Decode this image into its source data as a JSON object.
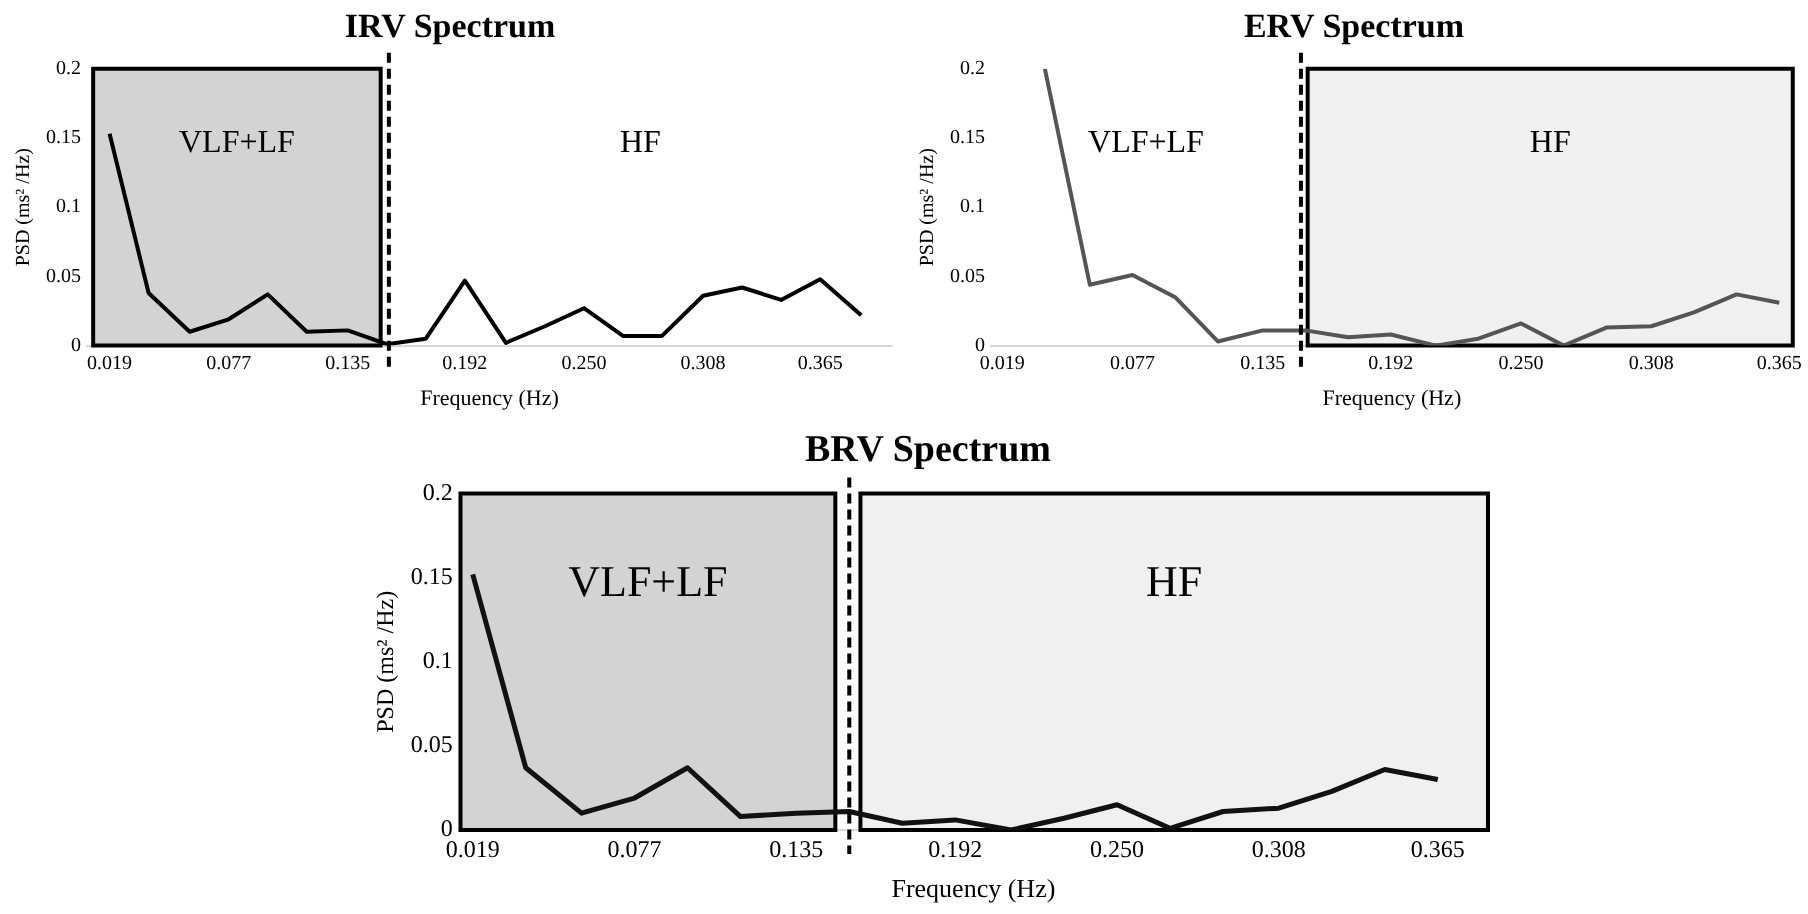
{
  "chart_data": [
    {
      "type": "line",
      "title": "IRV Spectrum",
      "xlabel": "Frequency (Hz)",
      "ylabel": "PSD (ms² /Hz)",
      "x": [
        0.019,
        0.038,
        0.058,
        0.077,
        0.096,
        0.115,
        0.135,
        0.154,
        0.173,
        0.192,
        0.212,
        0.231,
        0.25,
        0.269,
        0.288,
        0.308,
        0.327,
        0.346,
        0.365,
        0.385
      ],
      "series": [
        {
          "color": "#000000",
          "values": [
            0.153,
            0.038,
            0.01,
            0.019,
            0.037,
            0.01,
            0.011,
            0.001,
            0.005,
            0.047,
            0.002,
            0.014,
            0.027,
            0.007,
            0.007,
            0.036,
            0.042,
            0.033,
            0.048,
            0.022
          ]
        }
      ],
      "xlim": [
        0.008,
        0.4
      ],
      "ylim": [
        0,
        0.2
      ],
      "xticks": [
        {
          "value": 0.019,
          "label": "0.019"
        },
        {
          "value": 0.077,
          "label": "0.077"
        },
        {
          "value": 0.135,
          "label": "0.135"
        },
        {
          "value": 0.192,
          "label": "0.192"
        },
        {
          "value": 0.25,
          "label": "0.250"
        },
        {
          "value": 0.308,
          "label": "0.308"
        },
        {
          "value": 0.365,
          "label": "0.365"
        }
      ],
      "yticks": [
        0,
        0.05,
        0.1,
        0.15,
        0.2
      ],
      "bands": [
        {
          "axis": "x",
          "from": 0.011,
          "to": 0.151,
          "color": "#d3d3d3",
          "label": "VLF+LF"
        }
      ],
      "annotations": [
        "HF"
      ],
      "ref_lines": [
        {
          "axis": "x",
          "value": 0.155,
          "color": "#000000",
          "line_style": "dashed"
        }
      ],
      "grid": false,
      "legend": false,
      "marker": "none",
      "line_style": "solid"
    },
    {
      "type": "line",
      "title": "ERV Spectrum",
      "xlabel": "Frequency (Hz)",
      "ylabel": "PSD (ms² /Hz)",
      "series": [
        {
          "color": "#555555",
          "x": [
            0.038,
            0.058,
            0.077,
            0.096,
            0.115,
            0.135,
            0.154,
            0.173,
            0.192,
            0.212,
            0.231,
            0.25,
            0.269,
            0.288,
            0.308,
            0.327,
            0.346,
            0.365
          ],
          "values": [
            0.2,
            0.044,
            0.051,
            0.035,
            0.003,
            0.011,
            0.011,
            0.006,
            0.008,
            0,
            0.005,
            0.016,
            0,
            0.013,
            0.014,
            0.024,
            0.037,
            0.031
          ]
        }
      ],
      "xlim": [
        0.014,
        0.371
      ],
      "ylim": [
        0,
        0.2
      ],
      "xticks": [
        {
          "value": 0.019,
          "label": "0.019"
        },
        {
          "value": 0.077,
          "label": "0.077"
        },
        {
          "value": 0.135,
          "label": "0.135"
        },
        {
          "value": 0.192,
          "label": "0.192"
        },
        {
          "value": 0.25,
          "label": "0.250"
        },
        {
          "value": 0.308,
          "label": "0.308"
        },
        {
          "value": 0.365,
          "label": "0.365"
        }
      ],
      "yticks": [
        0,
        0.05,
        0.1,
        0.15,
        0.2
      ],
      "bands": [
        {
          "axis": "x",
          "from": 0.155,
          "to": 0.371,
          "color": "#f0f0f0",
          "label": "HF"
        }
      ],
      "annotations": [
        "VLF+LF"
      ],
      "ref_lines": [
        {
          "axis": "x",
          "value": 0.152,
          "color": "#000000",
          "line_style": "dashed"
        }
      ],
      "grid": false,
      "legend": false,
      "marker": "none",
      "line_style": "solid"
    },
    {
      "type": "line",
      "title": "BRV Spectrum",
      "xlabel": "Frequency (Hz)",
      "ylabel": "PSD (ms² /Hz)",
      "x": [
        0.019,
        0.038,
        0.058,
        0.077,
        0.096,
        0.115,
        0.135,
        0.154,
        0.173,
        0.192,
        0.212,
        0.231,
        0.25,
        0.269,
        0.288,
        0.308,
        0.327,
        0.346,
        0.365
      ],
      "series": [
        {
          "color": "#111111",
          "values": [
            0.152,
            0.037,
            0.01,
            0.019,
            0.037,
            0.008,
            0.01,
            0.011,
            0.004,
            0.006,
            0,
            0.007,
            0.015,
            0.001,
            0.011,
            0.013,
            0.023,
            0.036,
            0.03
          ]
        }
      ],
      "xlim": [
        0.014,
        0.383
      ],
      "ylim": [
        0,
        0.2
      ],
      "xticks": [
        {
          "value": 0.019,
          "label": "0.019"
        },
        {
          "value": 0.077,
          "label": "0.077"
        },
        {
          "value": 0.135,
          "label": "0.135"
        },
        {
          "value": 0.192,
          "label": "0.192"
        },
        {
          "value": 0.25,
          "label": "0.250"
        },
        {
          "value": 0.308,
          "label": "0.308"
        },
        {
          "value": 0.365,
          "label": "0.365"
        }
      ],
      "yticks": [
        0,
        0.05,
        0.1,
        0.15,
        0.2
      ],
      "bands": [
        {
          "axis": "x",
          "from": 0.0146,
          "to": 0.149,
          "color": "#d3d3d3",
          "label": "VLF+LF"
        },
        {
          "axis": "x",
          "from": 0.158,
          "to": 0.383,
          "color": "#f0f0f0",
          "label": "HF"
        }
      ],
      "ref_lines": [
        {
          "axis": "x",
          "value": 0.154,
          "color": "#000000",
          "line_style": "dashed"
        }
      ],
      "grid": false,
      "legend": false,
      "marker": "none",
      "line_style": "solid"
    }
  ]
}
